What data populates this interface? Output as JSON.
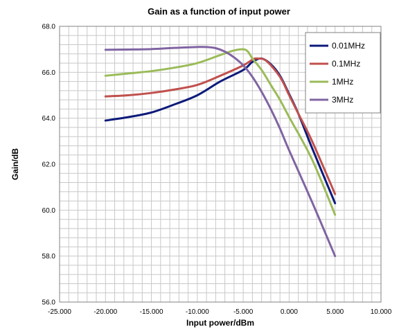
{
  "chart_data": {
    "type": "line",
    "title": "Gain as a function of input power",
    "xlabel": "Input power/dBm",
    "ylabel": "Gain/dB",
    "xlim": [
      -25,
      10
    ],
    "ylim": [
      56,
      68
    ],
    "x_ticks": [
      "-25.000",
      "-20.000",
      "-15.000",
      "-10.000",
      "-5.000",
      "0.000",
      "5.000",
      "10.000"
    ],
    "y_ticks": [
      "56.0",
      "58.0",
      "60.0",
      "62.0",
      "64.0",
      "66.0",
      "68.0"
    ],
    "grid": true,
    "legend_position": "top-right",
    "series": [
      {
        "name": "0.01MHz",
        "color": "#0c1a7a",
        "x": [
          -20,
          -17.5,
          -15,
          -12.5,
          -10,
          -7.5,
          -5,
          -4,
          -3,
          -2,
          -1,
          0,
          1,
          2.5,
          5
        ],
        "y": [
          63.9,
          64.05,
          64.25,
          64.6,
          65.0,
          65.6,
          66.1,
          66.45,
          66.6,
          66.35,
          65.85,
          65.05,
          64.2,
          62.7,
          60.3
        ]
      },
      {
        "name": "0.1MHz",
        "color": "#c0504d",
        "x": [
          -20,
          -17.5,
          -15,
          -12.5,
          -10,
          -7.5,
          -5,
          -4,
          -3.5,
          -2.5,
          -1,
          0,
          1,
          2.5,
          5
        ],
        "y": [
          64.95,
          65.0,
          65.1,
          65.25,
          65.45,
          65.85,
          66.3,
          66.55,
          66.6,
          66.5,
          65.8,
          65.0,
          64.2,
          63.0,
          60.7
        ]
      },
      {
        "name": "1MHz",
        "color": "#9bbb59",
        "x": [
          -20,
          -17.5,
          -15,
          -12.5,
          -10,
          -7.5,
          -6,
          -5,
          -4.5,
          -4,
          -3,
          -2,
          -1,
          0,
          2.5,
          5
        ],
        "y": [
          65.85,
          65.95,
          66.05,
          66.2,
          66.4,
          66.75,
          66.95,
          67.0,
          66.9,
          66.6,
          66.1,
          65.45,
          64.8,
          64.05,
          62.2,
          59.8
        ]
      },
      {
        "name": "3MHz",
        "color": "#8064a2",
        "x": [
          -20,
          -17.5,
          -15,
          -12.5,
          -10,
          -9,
          -8,
          -7,
          -6,
          -5,
          -4,
          -3,
          -2,
          -1,
          0,
          2.5,
          5
        ],
        "y": [
          66.98,
          66.99,
          67.01,
          67.06,
          67.1,
          67.1,
          67.05,
          66.9,
          66.65,
          66.3,
          65.8,
          65.15,
          64.4,
          63.55,
          62.6,
          60.35,
          58.0
        ]
      }
    ]
  }
}
